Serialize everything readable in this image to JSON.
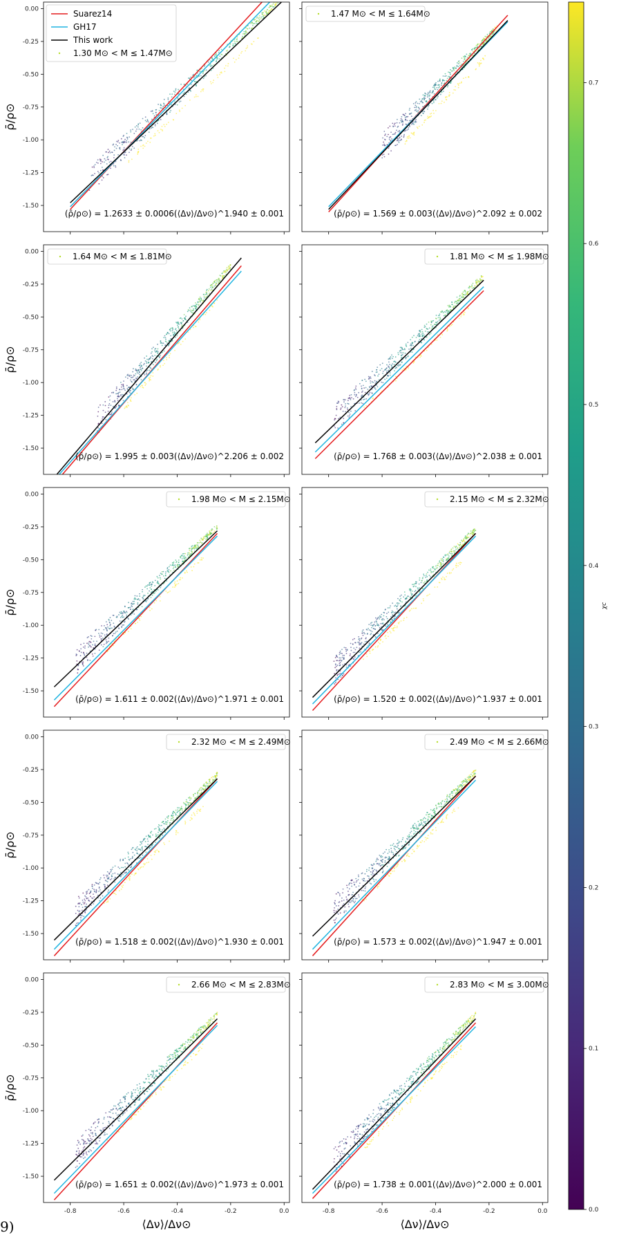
{
  "figure": {
    "corner_label": "9)",
    "x_axis_label": "⟨Δν⟩/Δν⊙",
    "y_axis_label": "ρ̄/ρ⊙",
    "colorbar": {
      "label": "χc",
      "min": 0.0,
      "max": 0.75,
      "ticks": [
        "0.0",
        "0.1",
        "0.2",
        "0.3",
        "0.4",
        "0.5",
        "0.6",
        "0.7"
      ]
    },
    "shared_legend": {
      "entries": [
        {
          "label": "Suarez14",
          "color": "#e41a1c"
        },
        {
          "label": "GH17",
          "color": "#1fb4e0"
        },
        {
          "label": "This work",
          "color": "#000000"
        }
      ]
    }
  },
  "chart_data": [
    {
      "type": "scatter",
      "panel": 1,
      "mass_bin": "1.30 M⊙ < M ≤ 1.47M⊙",
      "fit_label": "(ρ̄/ρ⊙) = 1.2633 ± 0.0006(⟨Δν⟩/Δν⊙)^1.940 ± 0.001",
      "xlim": [
        -0.9,
        0.02
      ],
      "ylim": [
        -1.7,
        0.05
      ],
      "xticks": [],
      "yticks": [
        "0.00",
        "-0.25",
        "-0.50",
        "-0.75",
        "-1.00",
        "-1.25",
        "-1.50"
      ],
      "lines": {
        "Suarez14": [
          [
            -0.8,
            -1.53
          ],
          [
            -0.06,
            0.1
          ]
        ],
        "GH17": [
          [
            -0.8,
            -1.51
          ],
          [
            -0.03,
            0.1
          ]
        ],
        "This work": [
          [
            -0.8,
            -1.48
          ],
          [
            -0.01,
            0.05
          ]
        ]
      },
      "cloud": {
        "x_range": [
          -0.73,
          -0.02
        ],
        "y_range": [
          -0.85,
          0.05
        ]
      }
    },
    {
      "type": "scatter",
      "panel": 2,
      "mass_bin": "1.47 M⊙ < M ≤ 1.64M⊙",
      "fit_label": "(ρ̄/ρ⊙) = 1.569 ± 0.003(⟨Δν⟩/Δν⊙)^2.092 ± 0.002",
      "xlim": [
        -0.9,
        0.02
      ],
      "ylim": [
        -1.7,
        0.05
      ],
      "xticks": [],
      "yticks": [],
      "lines": {
        "Suarez14": [
          [
            -0.8,
            -1.55
          ],
          [
            -0.13,
            -0.05
          ]
        ],
        "GH17": [
          [
            -0.8,
            -1.51
          ],
          [
            -0.13,
            -0.1
          ]
        ],
        "This work": [
          [
            -0.8,
            -1.53
          ],
          [
            -0.13,
            -0.09
          ]
        ]
      },
      "cloud": {
        "x_range": [
          -0.6,
          -0.17
        ],
        "y_range": [
          -0.9,
          -0.2
        ]
      }
    },
    {
      "type": "scatter",
      "panel": 3,
      "mass_bin": "1.64 M⊙ < M ≤ 1.81M⊙",
      "fit_label": "(ρ̄/ρ⊙) = 1.995 ± 0.003(⟨Δν⟩/Δν⊙)^2.206 ± 0.002",
      "xlim": [
        -0.9,
        0.02
      ],
      "ylim": [
        -1.7,
        0.05
      ],
      "xticks": [],
      "yticks": [
        "0.00",
        "-0.25",
        "-0.50",
        "-0.75",
        "-1.00",
        "-1.25",
        "-1.50"
      ],
      "lines": {
        "Suarez14": [
          [
            -0.85,
            -1.75
          ],
          [
            -0.16,
            -0.11
          ]
        ],
        "GH17": [
          [
            -0.85,
            -1.72
          ],
          [
            -0.16,
            -0.15
          ]
        ],
        "This work": [
          [
            -0.85,
            -1.7
          ],
          [
            -0.16,
            -0.05
          ]
        ]
      },
      "cloud": {
        "x_range": [
          -0.7,
          -0.2
        ],
        "y_range": [
          -1.05,
          -0.2
        ]
      }
    },
    {
      "type": "scatter",
      "panel": 4,
      "mass_bin": "1.81 M⊙ < M ≤ 1.98M⊙",
      "fit_label": "(ρ̄/ρ⊙) = 1.768 ± 0.003(⟨Δν⟩/Δν⊙)^2.038 ± 0.001",
      "xlim": [
        -0.9,
        0.02
      ],
      "ylim": [
        -1.7,
        0.05
      ],
      "xticks": [],
      "yticks": [],
      "lines": {
        "Suarez14": [
          [
            -0.85,
            -1.58
          ],
          [
            -0.22,
            -0.3
          ]
        ],
        "GH17": [
          [
            -0.85,
            -1.53
          ],
          [
            -0.22,
            -0.27
          ]
        ],
        "This work": [
          [
            -0.85,
            -1.46
          ],
          [
            -0.22,
            -0.22
          ]
        ]
      },
      "cloud": {
        "x_range": [
          -0.78,
          -0.22
        ],
        "y_range": [
          -1.15,
          -0.22
        ]
      }
    },
    {
      "type": "scatter",
      "panel": 5,
      "mass_bin": "1.98 M⊙ < M ≤ 2.15M⊙",
      "fit_label": "(ρ̄/ρ⊙) = 1.611 ± 0.002(⟨Δν⟩/Δν⊙)^1.971 ± 0.001",
      "xlim": [
        -0.9,
        0.02
      ],
      "ylim": [
        -1.7,
        0.05
      ],
      "xticks": [],
      "yticks": [
        "0.00",
        "-0.25",
        "-0.50",
        "-0.75",
        "-1.00",
        "-1.25",
        "-1.50"
      ],
      "lines": {
        "Suarez14": [
          [
            -0.86,
            -1.62
          ],
          [
            -0.25,
            -0.3
          ]
        ],
        "GH17": [
          [
            -0.86,
            -1.57
          ],
          [
            -0.25,
            -0.32
          ]
        ],
        "This work": [
          [
            -0.86,
            -1.47
          ],
          [
            -0.25,
            -0.28
          ]
        ]
      },
      "cloud": {
        "x_range": [
          -0.78,
          -0.25
        ],
        "y_range": [
          -1.35,
          -0.25
        ]
      }
    },
    {
      "type": "scatter",
      "panel": 6,
      "mass_bin": "2.15 M⊙ < M ≤ 2.32M⊙",
      "fit_label": "(ρ̄/ρ⊙) = 1.520 ± 0.002(⟨Δν⟩/Δν⊙)^1.937 ± 0.001",
      "xlim": [
        -0.9,
        0.02
      ],
      "ylim": [
        -1.7,
        0.05
      ],
      "xticks": [],
      "yticks": [],
      "lines": {
        "Suarez14": [
          [
            -0.86,
            -1.65
          ],
          [
            -0.25,
            -0.3
          ]
        ],
        "GH17": [
          [
            -0.86,
            -1.6
          ],
          [
            -0.25,
            -0.32
          ]
        ],
        "This work": [
          [
            -0.86,
            -1.55
          ],
          [
            -0.25,
            -0.3
          ]
        ]
      },
      "cloud": {
        "x_range": [
          -0.78,
          -0.25
        ],
        "y_range": [
          -1.35,
          -0.28
        ]
      }
    },
    {
      "type": "scatter",
      "panel": 7,
      "mass_bin": "2.32 M⊙ < M ≤ 2.49M⊙",
      "fit_label": "(ρ̄/ρ⊙) = 1.518 ± 0.002(⟨Δν⟩/Δν⊙)^1.930 ± 0.001",
      "xlim": [
        -0.9,
        0.02
      ],
      "ylim": [
        -1.7,
        0.05
      ],
      "xticks": [],
      "yticks": [
        "0.00",
        "-0.25",
        "-0.50",
        "-0.75",
        "-1.00",
        "-1.25",
        "-1.50"
      ],
      "lines": {
        "Suarez14": [
          [
            -0.86,
            -1.67
          ],
          [
            -0.25,
            -0.32
          ]
        ],
        "GH17": [
          [
            -0.86,
            -1.62
          ],
          [
            -0.25,
            -0.34
          ]
        ],
        "This work": [
          [
            -0.86,
            -1.55
          ],
          [
            -0.25,
            -0.32
          ]
        ]
      },
      "cloud": {
        "x_range": [
          -0.78,
          -0.25
        ],
        "y_range": [
          -1.35,
          -0.28
        ]
      }
    },
    {
      "type": "scatter",
      "panel": 8,
      "mass_bin": "2.49 M⊙ < M ≤ 2.66M⊙",
      "fit_label": "(ρ̄/ρ⊙) = 1.573 ± 0.002(⟨Δν⟩/Δν⊙)^1.947 ± 0.001",
      "xlim": [
        -0.9,
        0.02
      ],
      "ylim": [
        -1.7,
        0.05
      ],
      "xticks": [],
      "yticks": [],
      "lines": {
        "Suarez14": [
          [
            -0.86,
            -1.67
          ],
          [
            -0.25,
            -0.3
          ]
        ],
        "GH17": [
          [
            -0.86,
            -1.62
          ],
          [
            -0.25,
            -0.33
          ]
        ],
        "This work": [
          [
            -0.86,
            -1.52
          ],
          [
            -0.25,
            -0.3
          ]
        ]
      },
      "cloud": {
        "x_range": [
          -0.78,
          -0.25
        ],
        "y_range": [
          -1.35,
          -0.25
        ]
      }
    },
    {
      "type": "scatter",
      "panel": 9,
      "mass_bin": "2.66 M⊙ < M ≤ 2.83M⊙",
      "fit_label": "(ρ̄/ρ⊙) = 1.651 ± 0.002(⟨Δν⟩/Δν⊙)^1.973 ± 0.001",
      "xlim": [
        -0.9,
        0.02
      ],
      "ylim": [
        -1.7,
        0.05
      ],
      "xticks": [
        "-0.8",
        "-0.6",
        "-0.4",
        "-0.2",
        "0.0"
      ],
      "yticks": [
        "0.00",
        "-0.25",
        "-0.50",
        "-0.75",
        "-1.00",
        "-1.25",
        "-1.50"
      ],
      "lines": {
        "Suarez14": [
          [
            -0.86,
            -1.68
          ],
          [
            -0.25,
            -0.33
          ]
        ],
        "GH17": [
          [
            -0.86,
            -1.63
          ],
          [
            -0.25,
            -0.35
          ]
        ],
        "This work": [
          [
            -0.86,
            -1.53
          ],
          [
            -0.25,
            -0.3
          ]
        ]
      },
      "cloud": {
        "x_range": [
          -0.78,
          -0.25
        ],
        "y_range": [
          -1.35,
          -0.25
        ]
      }
    },
    {
      "type": "scatter",
      "panel": 10,
      "mass_bin": "2.83 M⊙ < M ≤ 3.00M⊙",
      "fit_label": "(ρ̄/ρ⊙) = 1.738 ± 0.001(⟨Δν⟩/Δν⊙)^2.000 ± 0.001",
      "xlim": [
        -0.9,
        0.02
      ],
      "ylim": [
        -1.7,
        0.05
      ],
      "xticks": [
        "-0.8",
        "-0.6",
        "-0.4",
        "-0.2",
        "0.0"
      ],
      "yticks": [],
      "lines": {
        "Suarez14": [
          [
            -0.86,
            -1.67
          ],
          [
            -0.25,
            -0.33
          ]
        ],
        "GH17": [
          [
            -0.86,
            -1.63
          ],
          [
            -0.25,
            -0.36
          ]
        ],
        "This work": [
          [
            -0.86,
            -1.6
          ],
          [
            -0.25,
            -0.3
          ]
        ]
      },
      "cloud": {
        "x_range": [
          -0.78,
          -0.25
        ],
        "y_range": [
          -1.35,
          -0.25
        ]
      }
    }
  ]
}
